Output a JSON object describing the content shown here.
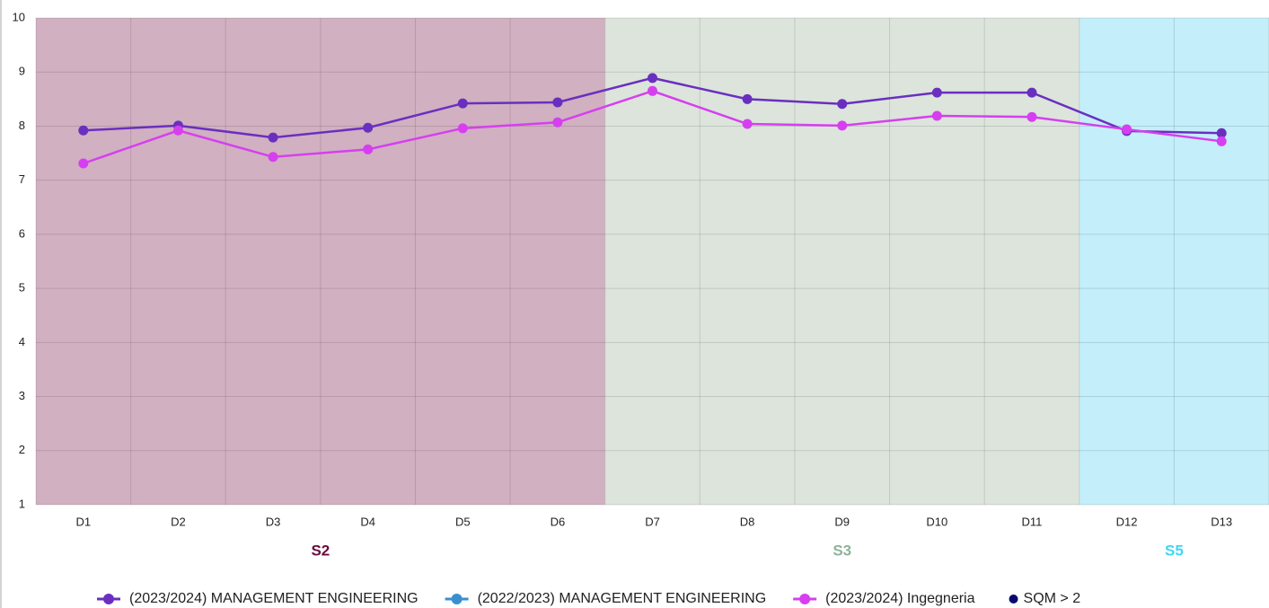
{
  "chart_data": {
    "type": "line",
    "categories": [
      "D1",
      "D2",
      "D3",
      "D4",
      "D5",
      "D6",
      "D7",
      "D8",
      "D9",
      "D10",
      "D11",
      "D12",
      "D13"
    ],
    "series": [
      {
        "name": "(2023/2024) MANAGEMENT ENGINEERING",
        "color": "#6a2fbf",
        "values": [
          7.92,
          8.01,
          7.79,
          7.97,
          8.42,
          8.44,
          8.89,
          8.5,
          8.41,
          8.62,
          8.62,
          7.91,
          7.87
        ]
      },
      {
        "name": "(2022/2023) MANAGEMENT ENGINEERING",
        "color": "#3a8fd0",
        "values": [
          null,
          null,
          null,
          null,
          null,
          null,
          null,
          null,
          null,
          null,
          null,
          null,
          null
        ]
      },
      {
        "name": "(2023/2024) Ingegneria",
        "color": "#d63fef",
        "values": [
          7.31,
          7.92,
          7.43,
          7.57,
          7.96,
          8.07,
          8.65,
          8.04,
          8.01,
          8.19,
          8.17,
          7.94,
          7.72
        ]
      },
      {
        "name": "SQM > 2",
        "color": "#0a0a6e",
        "values": [
          null,
          null,
          null,
          null,
          null,
          null,
          null,
          null,
          null,
          null,
          null,
          null,
          null
        ]
      }
    ],
    "bands": [
      {
        "label": "S2",
        "start": 0,
        "end": 5,
        "color": "#d1b0c1",
        "label_color": "#6b0a3a"
      },
      {
        "label": "S3",
        "start": 6,
        "end": 10,
        "color": "#dce4dc",
        "label_color": "#8fb39a"
      },
      {
        "label": "S5",
        "start": 11,
        "end": 12,
        "color": "#c4eefa",
        "label_color": "#3fd7f5"
      }
    ],
    "ylim": [
      1,
      10
    ],
    "yticks": [
      1,
      2,
      3,
      4,
      5,
      6,
      7,
      8,
      9,
      10
    ],
    "grid": true,
    "legend": "bottom"
  }
}
